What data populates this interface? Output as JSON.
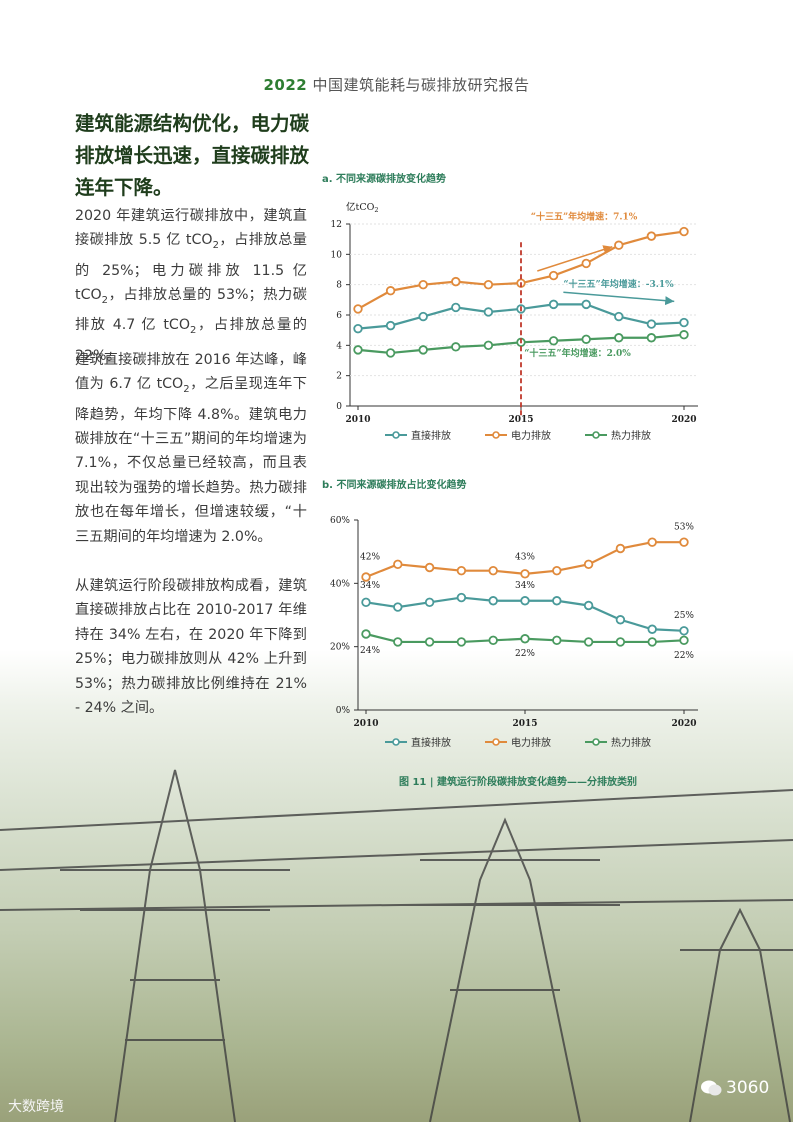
{
  "header": {
    "year": "2022",
    "title": " 中国建筑能耗与碳排放研究报告"
  },
  "headline": "建筑能源结构优化，电力碳排放增长迅速，直接碳排放连年下降。",
  "paragraphs": {
    "p1": [
      {
        "t": "2020 年建筑运行碳排放中，建筑直接碳排放 5.5 亿 tCO"
      },
      {
        "s": "2"
      },
      {
        "t": "，占排放总量的 25%；电力碳排放 11.5 亿 tCO"
      },
      {
        "s": "2"
      },
      {
        "t": "，占排放总量的 53%；热力碳排放 4.7 亿 tCO"
      },
      {
        "s": "2"
      },
      {
        "t": "，占排放总量的 22%。"
      }
    ],
    "p2": [
      {
        "t": "建筑直接碳排放在 2016 年达峰，峰值为 6.7 亿 tCO"
      },
      {
        "s": "2"
      },
      {
        "t": "，之后呈现连年下降趋势，年均下降 4.8%。建筑电力碳排放在“十三五”期间的年均增速为 7.1%，不仅总量已经较高，而且表现出较为强势的增长趋势。热力碳排放也在每年增长，但增速较缓，“十三五期间的年均增速为 2.0%。"
      }
    ],
    "p3": [
      {
        "t": "从建筑运行阶段碳排放构成看，建筑直接碳排放占比在 2010-2017 年维持在 34% 左右，在 2020 年下降到 25%；电力碳排放则从 42% 上升到 53%；热力碳排放比例维持在 21% - 24% 之间。"
      }
    ]
  },
  "legend": [
    "直接排放",
    "电力排放",
    "热力排放"
  ],
  "colors": {
    "direct": "#4a9a9a",
    "electric": "#e08a3c",
    "heat": "#4a9a60",
    "title_green": "#2e7d5b",
    "marker": "#c0392b"
  },
  "chart_data": [
    {
      "type": "line",
      "title": "a. 不同来源碳排放变化趋势",
      "ylabel": "亿tCO",
      "ylabel_sub": "2",
      "ylim": [
        0,
        12
      ],
      "yticks": [
        0,
        2,
        4,
        6,
        8,
        10,
        12
      ],
      "xlim": [
        2010,
        2020
      ],
      "xticks": [
        "2010",
        "2015",
        "2020"
      ],
      "x": [
        2010,
        2011,
        2012,
        2013,
        2014,
        2015,
        2016,
        2017,
        2018,
        2019,
        2020
      ],
      "series": [
        {
          "name": "直接排放",
          "values": [
            5.1,
            5.3,
            5.9,
            6.5,
            6.2,
            6.4,
            6.7,
            6.7,
            5.9,
            5.4,
            5.5
          ]
        },
        {
          "name": "电力排放",
          "values": [
            6.4,
            7.6,
            8.0,
            8.2,
            8.0,
            8.1,
            8.6,
            9.4,
            10.6,
            11.2,
            11.5
          ]
        },
        {
          "name": "热力排放",
          "values": [
            3.7,
            3.5,
            3.7,
            3.9,
            4.0,
            4.2,
            4.3,
            4.4,
            4.5,
            4.5,
            4.7
          ]
        }
      ],
      "annotations": [
        {
          "text": "“十三五”年均增速：7.1%",
          "series": "电力排放"
        },
        {
          "text": "“十三五”年均增速：-3.1%",
          "series": "直接排放"
        },
        {
          "text": "“十三五”年均增速：2.0%",
          "series": "热力排放"
        }
      ],
      "marker_x": 2015
    },
    {
      "type": "line",
      "title": "b. 不同来源碳排放占比变化趋势",
      "ylim": [
        0,
        60
      ],
      "yticks": [
        "0%",
        "20%",
        "40%",
        "60%"
      ],
      "xlim": [
        2010,
        2020
      ],
      "xticks": [
        "2010",
        "2015",
        "2020"
      ],
      "x": [
        2010,
        2011,
        2012,
        2013,
        2014,
        2015,
        2016,
        2017,
        2018,
        2019,
        2020
      ],
      "series": [
        {
          "name": "直接排放",
          "values": [
            34,
            32.5,
            34,
            35.5,
            34.5,
            34.5,
            34.5,
            33,
            28.5,
            25.5,
            25
          ]
        },
        {
          "name": "电力排放",
          "values": [
            42,
            46,
            45,
            44,
            44,
            43,
            44,
            46,
            51,
            53,
            53
          ]
        },
        {
          "name": "热力排放",
          "values": [
            24,
            21.5,
            21.5,
            21.5,
            22,
            22.5,
            22,
            21.5,
            21.5,
            21.5,
            22
          ]
        }
      ],
      "data_labels": [
        {
          "text": "42%"
        },
        {
          "text": "34%"
        },
        {
          "text": "24%"
        },
        {
          "text": "43%"
        },
        {
          "text": "34%"
        },
        {
          "text": "22%"
        },
        {
          "text": "53%"
        },
        {
          "text": "25%"
        },
        {
          "text": "22%"
        }
      ]
    }
  ],
  "caption": "图 11 | 建筑运行阶段碳排放变化趋势——分排放类别",
  "watermarks": {
    "left": "大数跨境",
    "right": "3060"
  }
}
